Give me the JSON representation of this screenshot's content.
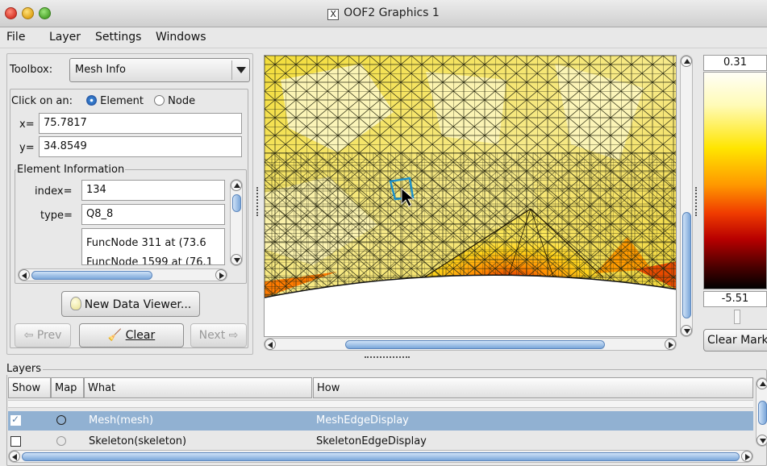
{
  "window": {
    "title": "OOF2 Graphics 1"
  },
  "menu": [
    "File",
    "Layer",
    "Settings",
    "Windows"
  ],
  "toolbox": {
    "label": "Toolbox:",
    "selected": "Mesh Info",
    "click_on_label": "Click on an:",
    "options": [
      "Element",
      "Node"
    ],
    "selected_option": "Element",
    "x_label": "x=",
    "x_value": "75.7817",
    "y_label": "y=",
    "y_value": "34.8549",
    "element_info_title": "Element Information",
    "index_label": "index=",
    "index_value": "134",
    "type_label": "type=",
    "type_value": "Q8_8",
    "nodes": [
      "FuncNode 311 at (73.6",
      "FuncNode 1599 at (76.1"
    ],
    "new_data_viewer": "New Data Viewer...",
    "prev": "Prev",
    "clear": "Clear",
    "next": "Next"
  },
  "colorbar": {
    "max": "0.31",
    "min": "-5.51",
    "clear_mark": "Clear Mark"
  },
  "colors": {
    "selection": "#91b1d2",
    "accent": "#3d86d6"
  },
  "layers": {
    "title": "Layers",
    "columns": [
      "Show",
      "Map",
      "What",
      "How"
    ],
    "rows": [
      {
        "show": true,
        "map": false,
        "what": "Mesh(mesh)",
        "how": "MeshEdgeDisplay",
        "selected": true
      },
      {
        "show": false,
        "map": false,
        "what": "Skeleton(skeleton)",
        "how": "SkeletonEdgeDisplay",
        "selected": false
      }
    ]
  }
}
